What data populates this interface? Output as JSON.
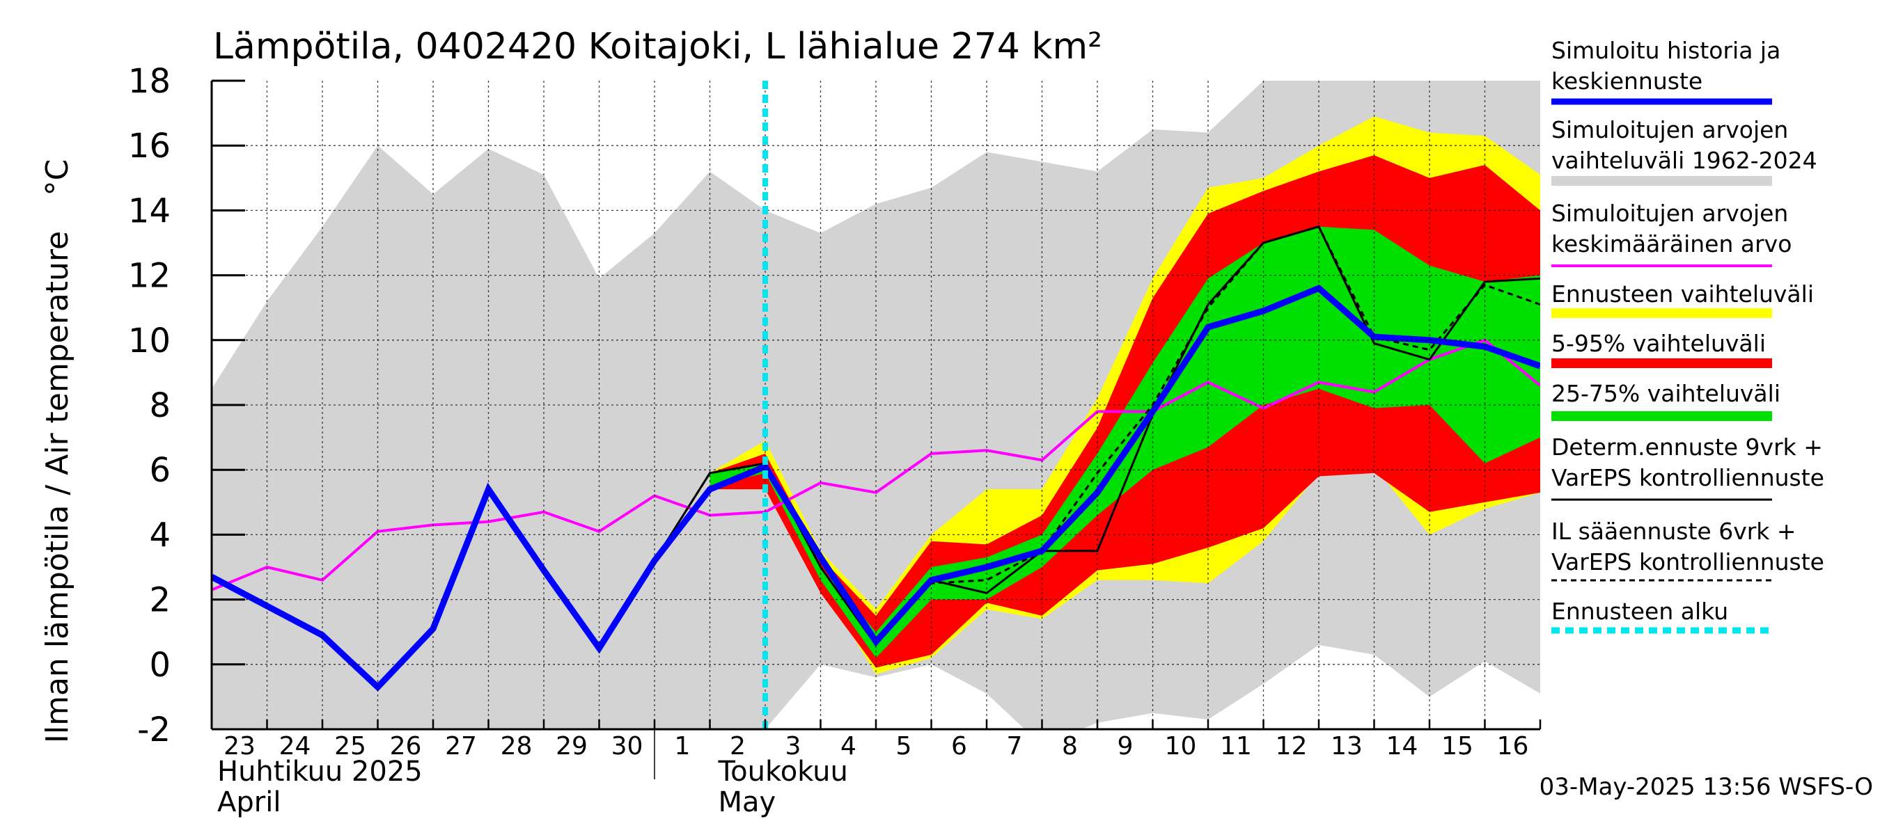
{
  "chart_data": {
    "type": "line",
    "title": "Lämpötila, 0402420 Koitajoki, L lähialue 274 km²",
    "ylabel": "Ilman lämpötila / Air temperature",
    "yunit": "°C",
    "ylim": [
      -2,
      18
    ],
    "yticks": [
      -2,
      0,
      2,
      4,
      6,
      8,
      10,
      12,
      14,
      16,
      18
    ],
    "xlim": [
      0,
      24
    ],
    "grid": true,
    "day_labels": [
      "23",
      "24",
      "25",
      "26",
      "27",
      "28",
      "29",
      "30",
      "1",
      "2",
      "3",
      "4",
      "5",
      "6",
      "7",
      "8",
      "9",
      "10",
      "11",
      "12",
      "13",
      "14",
      "15",
      "16"
    ],
    "month_labels": [
      {
        "fi": "Huhtikuu  2025",
        "en": "April"
      },
      {
        "fi": "Toukokuu",
        "en": "May"
      }
    ],
    "forecast_start_x": 10,
    "series": [
      {
        "name": "Simuloitujen arvojen vaihteluväli 1962-2024",
        "kind": "band",
        "color": "#d3d3d3",
        "x": [
          0,
          1,
          2,
          3,
          4,
          5,
          6,
          7,
          8,
          9,
          10,
          11,
          12,
          13,
          14,
          15,
          16,
          17,
          18,
          19,
          20,
          21,
          22,
          23,
          24
        ],
        "upper": [
          8.5,
          11.2,
          13.5,
          16.0,
          14.5,
          15.9,
          15.1,
          11.9,
          13.3,
          15.2,
          14.0,
          13.3,
          14.2,
          14.7,
          15.8,
          15.5,
          15.2,
          16.5,
          16.4,
          18.0,
          18.0,
          18.0,
          18.0,
          18.0,
          18.0
        ],
        "lower": [
          -2,
          -2,
          -2,
          -2,
          -2,
          -2,
          -2,
          -2,
          -2,
          -2,
          -2,
          0.0,
          -0.4,
          0.0,
          -0.9,
          -2.5,
          -1.8,
          -1.5,
          -1.7,
          -0.6,
          0.6,
          0.3,
          -1.0,
          0.1,
          -0.9
        ]
      },
      {
        "name": "Ennusteen vaihteluväli",
        "kind": "band",
        "color": "#ffff00",
        "x": [
          9,
          10,
          11,
          12,
          13,
          14,
          15,
          16,
          17,
          18,
          19,
          20,
          21,
          22,
          23,
          24
        ],
        "upper": [
          5.9,
          6.9,
          3.5,
          1.7,
          4.0,
          5.4,
          5.4,
          8.2,
          11.9,
          14.7,
          15.0,
          16.0,
          16.9,
          16.4,
          16.3,
          15.1
        ],
        "lower": [
          5.4,
          5.4,
          2.5,
          -0.3,
          0.2,
          1.7,
          1.4,
          2.6,
          2.6,
          2.5,
          3.8,
          5.9,
          6.1,
          4.0,
          4.8,
          5.3
        ]
      },
      {
        "name": "5-95% vaihteluväli",
        "kind": "band",
        "color": "#ff0000",
        "x": [
          9,
          10,
          11,
          12,
          13,
          14,
          15,
          16,
          17,
          18,
          19,
          20,
          21,
          22,
          23,
          24
        ],
        "upper": [
          5.9,
          6.5,
          3.3,
          1.5,
          3.8,
          3.7,
          4.6,
          7.3,
          11.3,
          13.9,
          14.6,
          15.2,
          15.7,
          15.0,
          15.4,
          14.0
        ],
        "lower": [
          5.4,
          5.4,
          2.2,
          -0.1,
          0.3,
          1.9,
          1.5,
          2.9,
          3.1,
          3.6,
          4.2,
          5.8,
          5.9,
          4.7,
          5.0,
          5.3
        ]
      },
      {
        "name": "25-75% vaihteluväli",
        "kind": "band",
        "color": "#00e000",
        "x": [
          9,
          10,
          11,
          12,
          13,
          14,
          15,
          16,
          17,
          18,
          19,
          20,
          21,
          22,
          23,
          24
        ],
        "upper": [
          5.9,
          6.2,
          3.0,
          1.0,
          3.0,
          3.3,
          4.0,
          6.5,
          9.3,
          11.9,
          13.0,
          13.5,
          13.4,
          12.3,
          11.8,
          12.0
        ],
        "lower": [
          5.5,
          5.9,
          2.6,
          0.2,
          2.0,
          2.0,
          3.0,
          4.6,
          6.0,
          6.7,
          8.0,
          8.5,
          7.9,
          8.0,
          6.2,
          7.0
        ]
      },
      {
        "name": "Simuloitujen arvojen keskimääräinen arvo",
        "kind": "line",
        "color": "#ff00ff",
        "width": 4,
        "x": [
          0,
          1,
          2,
          3,
          4,
          5,
          6,
          7,
          8,
          9,
          10,
          11,
          12,
          13,
          14,
          15,
          16,
          17,
          18,
          19,
          20,
          21,
          22,
          23,
          24
        ],
        "y": [
          2.3,
          3.0,
          2.6,
          4.1,
          4.3,
          4.4,
          4.7,
          4.1,
          5.2,
          4.6,
          4.7,
          5.6,
          5.3,
          6.5,
          6.6,
          6.3,
          7.8,
          7.8,
          8.7,
          7.9,
          8.7,
          8.4,
          9.4,
          10.0,
          8.6
        ]
      },
      {
        "name": "IL sääennuste 6vrk + VarEPS kontrolliennuste",
        "kind": "line",
        "color": "#000000",
        "width": 3,
        "dash": "8,6",
        "x": [
          8,
          9,
          10,
          11,
          12,
          13,
          14,
          15,
          16,
          17,
          18,
          19,
          20,
          21,
          22,
          23,
          24
        ],
        "y": [
          3.2,
          5.9,
          6.2,
          3.2,
          0.7,
          2.5,
          2.6,
          3.5,
          5.9,
          8.0,
          11.0,
          13.0,
          13.5,
          10.1,
          9.7,
          11.7,
          11.1
        ]
      },
      {
        "name": "Determ.ennuste 9vrk + VarEPS kontrolliennuste",
        "kind": "line",
        "color": "#000000",
        "width": 3,
        "x": [
          8,
          9,
          10,
          11,
          12,
          13,
          14,
          15,
          16,
          17,
          18,
          19,
          20,
          21,
          22,
          23,
          24
        ],
        "y": [
          3.2,
          5.9,
          6.2,
          3.0,
          0.6,
          2.6,
          2.2,
          3.5,
          3.5,
          7.7,
          11.1,
          13.0,
          13.5,
          9.9,
          9.4,
          11.8,
          11.9
        ]
      },
      {
        "name": "Simuloitu historia ja keskiennuste",
        "kind": "line",
        "color": "#0000ff",
        "width": 9,
        "x": [
          0,
          1,
          2,
          3,
          4,
          5,
          6,
          7,
          8,
          9,
          10,
          11,
          12,
          13,
          14,
          15,
          16,
          17,
          18,
          19,
          20,
          21,
          22,
          23,
          24
        ],
        "y": [
          2.7,
          1.8,
          0.9,
          -0.7,
          1.1,
          5.4,
          2.9,
          0.5,
          3.2,
          5.4,
          6.1,
          3.3,
          0.7,
          2.6,
          3.0,
          3.5,
          5.3,
          7.8,
          10.4,
          10.9,
          11.6,
          10.1,
          10.0,
          9.8,
          9.2
        ]
      }
    ],
    "legend": [
      {
        "label": "Simuloitu historia ja keskiennuste",
        "lines": [
          "Simuloitu historia ja",
          "keskiennuste"
        ],
        "color": "#0000ff",
        "style": "thick"
      },
      {
        "label": "Simuloitujen arvojen vaihteluväli 1962-2024",
        "lines": [
          "Simuloitujen arvojen",
          "vaihteluväli 1962-2024"
        ],
        "color": "#d3d3d3",
        "style": "bar"
      },
      {
        "label": "Simuloitujen arvojen keskimääräinen arvo",
        "lines": [
          "Simuloitujen arvojen",
          "keskimääräinen arvo"
        ],
        "color": "#ff00ff",
        "style": "line"
      },
      {
        "label": "Ennusteen vaihteluväli",
        "lines": [
          "Ennusteen vaihteluväli"
        ],
        "color": "#ffff00",
        "style": "bar"
      },
      {
        "label": "5-95% vaihteluväli",
        "lines": [
          "5-95% vaihteluväli"
        ],
        "color": "#ff0000",
        "style": "bar"
      },
      {
        "label": "25-75% vaihteluväli",
        "lines": [
          "25-75% vaihteluväli"
        ],
        "color": "#00e000",
        "style": "bar"
      },
      {
        "label": "Determ.ennuste 9vrk + VarEPS kontrolliennuste",
        "lines": [
          "Determ.ennuste 9vrk +",
          "VarEPS kontrolliennuste"
        ],
        "color": "#000000",
        "style": "thin"
      },
      {
        "label": "IL sääennuste 6vrk + VarEPS kontrolliennuste",
        "lines": [
          "IL sääennuste 6vrk  +",
          "  VarEPS kontrolliennuste"
        ],
        "color": "#000000",
        "style": "dashed"
      },
      {
        "label": "Ennusteen alku",
        "lines": [
          "Ennusteen alku"
        ],
        "color": "#00e5ee",
        "style": "cyan-dashed"
      }
    ],
    "footer": "03-May-2025 13:56 WSFS-O"
  }
}
